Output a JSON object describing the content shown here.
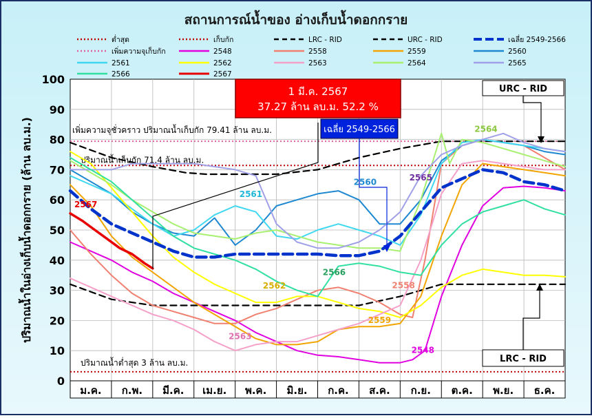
{
  "chart_data": {
    "type": "line",
    "title": "สถานการณ์น้ำของ อ่างเก็บน้ำดอกกราย",
    "ylabel": "ปริมาณน้ำในอ่างเก็บน้ำดอกกราย (ล้าน ลบ.ม.)",
    "xlabel": "",
    "ylim": [
      0,
      100
    ],
    "yticks": [
      0,
      10,
      20,
      30,
      40,
      50,
      60,
      70,
      80,
      90,
      100
    ],
    "grid": true,
    "legend_position": "top",
    "months": [
      "ม.ค.",
      "ก.พ.",
      "มี.ค.",
      "เม.ย.",
      "พ.ค.",
      "มิ.ย.",
      "ก.ค.",
      "ส.ค.",
      "ก.ย.",
      "ต.ค.",
      "พ.ย.",
      "ธ.ค."
    ],
    "reference_lines": [
      {
        "key": "min",
        "name": "ต่ำสุด",
        "value": 3,
        "color": "#c00000",
        "label": "ปริมาณน้ำต่ำสุด 3 ล้าน ลบ.ม."
      },
      {
        "key": "cap",
        "name": "เก็บกัก",
        "value": 71.4,
        "color": "#c00000",
        "label": "ปริมาณน้ำเก็บกัก 71.4 ล้าน ลบ.ม."
      },
      {
        "key": "tmp",
        "name": "เพิ่มความจุเก็บกัก",
        "value": 79.41,
        "color": "#e0609f",
        "label": "เพิ่มความจุชั่วคราว ปริมาณน้ำเก็บกัก 79.41 ล้าน ลบ.ม."
      }
    ],
    "rule_curves": [
      {
        "key": "lrc",
        "name": "LRC - RID",
        "color": "#000000",
        "x": [
          0,
          1,
          2,
          3,
          4,
          5,
          6,
          7,
          8,
          9,
          10,
          11,
          12
        ],
        "y": [
          32,
          27,
          25,
          25,
          25,
          25,
          25,
          25,
          28,
          32,
          32,
          32,
          32
        ]
      },
      {
        "key": "urc",
        "name": "URC - RID",
        "color": "#000000",
        "x": [
          0,
          1,
          2,
          2.8,
          3.3,
          4,
          5,
          6,
          7,
          8,
          9,
          10,
          11,
          12
        ],
        "y": [
          79,
          74,
          71,
          69,
          68.5,
          68.5,
          68.5,
          70,
          74,
          77,
          79.4,
          79.4,
          79.4,
          79.4
        ]
      }
    ],
    "average": {
      "key": "avg",
      "name": "เฉลี่ย 2549-2566",
      "color": "#0033cc",
      "x": [
        0,
        0.5,
        1,
        1.5,
        2,
        2.5,
        3,
        3.5,
        4,
        4.5,
        5,
        5.5,
        6,
        6.5,
        7,
        7.5,
        8,
        8.5,
        9,
        9.5,
        10,
        10.5,
        11,
        11.5,
        12
      ],
      "y": [
        63,
        57,
        52,
        49,
        46,
        43,
        41,
        41,
        42,
        42,
        42,
        42,
        42,
        41.5,
        41.5,
        43,
        48,
        56,
        64,
        67,
        70,
        69,
        66,
        65,
        63
      ]
    },
    "series": [
      {
        "key": "y2548",
        "name": "2548",
        "color": "#e000e0",
        "x": [
          0,
          0.5,
          1,
          1.5,
          2,
          2.5,
          3,
          3.5,
          4,
          4.5,
          5,
          5.5,
          6,
          6.5,
          7,
          7.5,
          8,
          8.3,
          8.6,
          9,
          9.5,
          10,
          10.5,
          11,
          11.5,
          12
        ],
        "y": [
          46,
          43,
          40,
          36,
          33,
          29,
          26,
          23,
          20,
          16,
          13,
          10,
          8.5,
          8,
          7,
          6,
          6,
          7,
          10,
          28,
          45,
          58,
          64,
          64.5,
          64,
          63
        ]
      },
      {
        "key": "y2558",
        "name": "2558",
        "color": "#f08070",
        "x": [
          0,
          0.5,
          1,
          1.5,
          2,
          2.5,
          3,
          3.5,
          4,
          4.5,
          5,
          5.5,
          6,
          6.5,
          7,
          7.5,
          8,
          8.3,
          8.6,
          9,
          9.5,
          10,
          10.5,
          11,
          11.5,
          12
        ],
        "y": [
          50,
          42,
          35,
          29,
          25,
          23,
          21,
          19,
          19,
          22,
          24,
          27,
          30,
          31,
          29,
          26,
          22,
          21,
          40,
          72,
          78,
          80,
          79,
          78,
          74,
          70
        ]
      },
      {
        "key": "y2559",
        "name": "2559",
        "color": "#f2a500",
        "x": [
          0,
          0.5,
          1,
          1.5,
          2,
          2.5,
          3,
          3.5,
          4,
          4.5,
          5,
          5.5,
          6,
          6.5,
          7,
          7.5,
          8,
          8.5,
          9,
          9.5,
          10,
          10.5,
          11,
          11.5,
          12
        ],
        "y": [
          65,
          58,
          48,
          41,
          36,
          31,
          26,
          22,
          18,
          14,
          12,
          12,
          13,
          17,
          18,
          18,
          19,
          28,
          48,
          65,
          72,
          71,
          70,
          69,
          68
        ]
      },
      {
        "key": "y2560",
        "name": "2560",
        "color": "#1e88d0",
        "x": [
          0,
          0.5,
          1,
          1.5,
          2,
          2.5,
          3,
          3.5,
          4,
          4.5,
          5,
          5.5,
          6,
          6.5,
          7,
          7.5,
          8,
          8.5,
          9,
          9.5,
          10,
          10.5,
          11,
          11.5,
          12
        ],
        "y": [
          70,
          66,
          62,
          56,
          52,
          49,
          48,
          54,
          45,
          50,
          58,
          60,
          62,
          63,
          60,
          52,
          52,
          60,
          73,
          78,
          80,
          79,
          78,
          76,
          75
        ]
      },
      {
        "key": "y2561",
        "name": "2561",
        "color": "#40d8f0",
        "x": [
          0,
          0.5,
          1,
          1.5,
          2,
          2.5,
          3,
          3.5,
          4,
          4.5,
          5,
          5.5,
          6,
          6.5,
          7,
          7.5,
          8,
          8.5,
          9,
          9.5,
          10,
          10.5,
          11,
          11.5,
          12
        ],
        "y": [
          68,
          65,
          62,
          57,
          52,
          48,
          50,
          55,
          58,
          56,
          48,
          47,
          50,
          52,
          50,
          48,
          45,
          55,
          72,
          79,
          80,
          79,
          78,
          77,
          76
        ]
      },
      {
        "key": "y2562",
        "name": "2562",
        "color": "#ffff00",
        "x": [
          0,
          0.5,
          1,
          1.5,
          2,
          2.5,
          3,
          3.5,
          4,
          4.5,
          5,
          5.5,
          6,
          6.5,
          7,
          7.5,
          8,
          8.5,
          9,
          9.5,
          10,
          10.5,
          11,
          11.5,
          12
        ],
        "y": [
          76,
          72,
          64,
          56,
          48,
          41,
          36,
          32,
          29,
          26,
          26,
          28,
          28,
          26,
          24,
          23,
          21,
          25,
          31,
          35,
          37,
          36,
          35,
          35,
          34.5
        ]
      },
      {
        "key": "y2563",
        "name": "2563",
        "color": "#f5a0c8",
        "x": [
          0,
          0.5,
          1,
          1.5,
          2,
          2.5,
          3,
          3.5,
          4,
          4.5,
          5,
          5.5,
          6,
          6.5,
          7,
          7.5,
          8,
          8.5,
          9,
          9.5,
          10,
          10.5,
          11,
          11.5,
          12
        ],
        "y": [
          34,
          31,
          28,
          25,
          22,
          20,
          17,
          13,
          10,
          12,
          13,
          13,
          15,
          17,
          19,
          22,
          25,
          40,
          62,
          72,
          73,
          72,
          71,
          70,
          70
        ]
      },
      {
        "key": "y2564",
        "name": "2564",
        "color": "#a8f070",
        "x": [
          0,
          0.5,
          1,
          1.5,
          2,
          2.5,
          3,
          3.5,
          4,
          4.5,
          5,
          5.5,
          6,
          6.5,
          7,
          7.5,
          8,
          8.5,
          9,
          9.2,
          9.5,
          10,
          10.5,
          11,
          11.5,
          12
        ],
        "y": [
          73,
          69,
          65,
          60,
          56,
          52,
          49,
          48,
          47,
          49,
          50,
          48,
          46,
          45,
          44,
          44,
          43,
          60,
          82,
          72,
          80,
          79,
          77,
          75,
          73,
          71
        ]
      },
      {
        "key": "y2565",
        "name": "2565",
        "color": "#a0a0e8",
        "x": [
          0,
          0.5,
          1,
          1.5,
          2,
          2.5,
          3,
          3.5,
          4,
          4.5,
          5,
          5.5,
          6,
          6.5,
          7,
          7.5,
          8,
          8.5,
          9,
          9.5,
          10,
          10.5,
          11,
          11.5,
          12
        ],
        "y": [
          70,
          70,
          70,
          72,
          72,
          72,
          72,
          71,
          70,
          68,
          52,
          46,
          44,
          44,
          46,
          50,
          56,
          68,
          75,
          78,
          80,
          82,
          79,
          77,
          76
        ]
      },
      {
        "key": "y2566",
        "name": "2566",
        "color": "#30e0a0",
        "x": [
          0,
          0.5,
          1,
          1.5,
          2,
          2.5,
          3,
          3.5,
          4,
          4.5,
          5,
          5.5,
          6,
          6.5,
          7,
          7.5,
          8,
          8.5,
          9,
          9.5,
          10,
          10.5,
          11,
          11.5,
          12
        ],
        "y": [
          74,
          70,
          66,
          60,
          54,
          48,
          44,
          42,
          40,
          37,
          33,
          30,
          28,
          38,
          39,
          38,
          36,
          35,
          45,
          52,
          56,
          58,
          60,
          57,
          55
        ]
      },
      {
        "key": "y2567",
        "name": "2567",
        "color": "#e80000",
        "x": [
          0,
          0.3,
          0.6,
          0.9,
          1.2,
          1.5,
          1.8,
          2
        ],
        "y": [
          55.5,
          53,
          50,
          47,
          44,
          42,
          39,
          37.27
        ]
      }
    ],
    "annotations": {
      "current_box_line1": "1 มี.ค. 2567",
      "current_box_line2": "37.27 ล้าน ลบ.ม. 52.2 %",
      "urc_box": "URC - RID",
      "lrc_box": "LRC - RID",
      "avg_box": "เฉลี่ย 2549-2566"
    }
  }
}
